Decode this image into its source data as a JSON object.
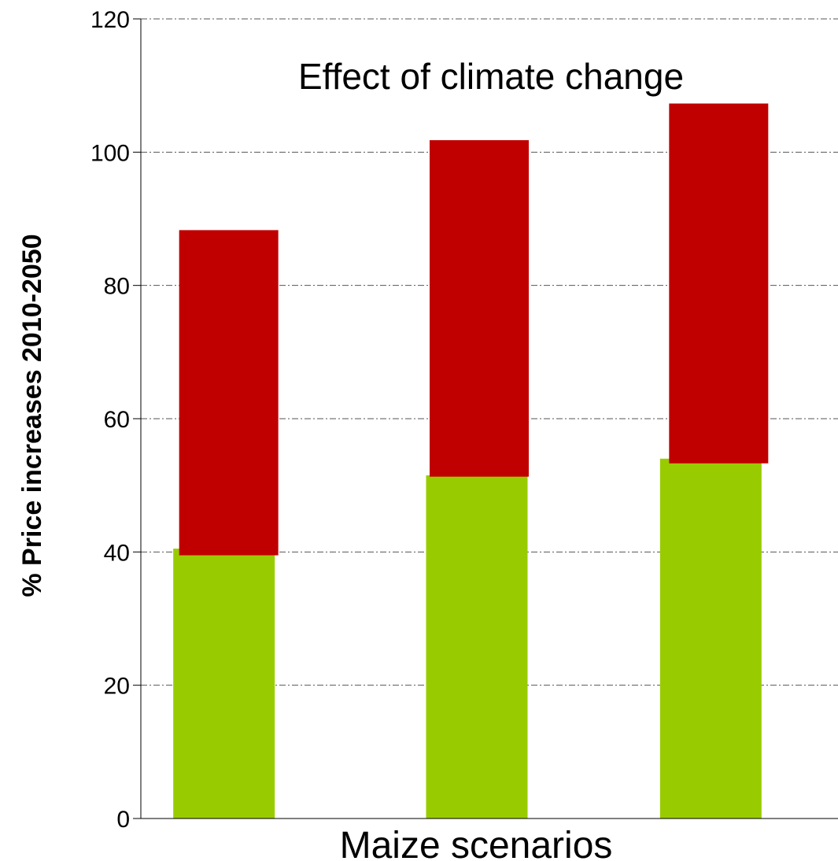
{
  "chart_data": {
    "type": "bar",
    "categories": [
      "",
      "",
      ""
    ],
    "series": [
      {
        "color": "#99cc00",
        "values": [
          40.5,
          51.5,
          54
        ]
      },
      {
        "color": "#c00000",
        "values": [
          [
            39.5,
            88.3
          ],
          [
            51.3,
            101.8
          ],
          [
            53.3,
            107.3
          ]
        ]
      }
    ],
    "annotation": "Effect of climate change",
    "xlabel": "Maize scenarios",
    "ylabel": "% Price increases 2010-2050",
    "ylim": [
      0,
      120
    ],
    "yticks": [
      0,
      20,
      40,
      60,
      80,
      100,
      120
    ],
    "grid": true,
    "legend": "none"
  }
}
